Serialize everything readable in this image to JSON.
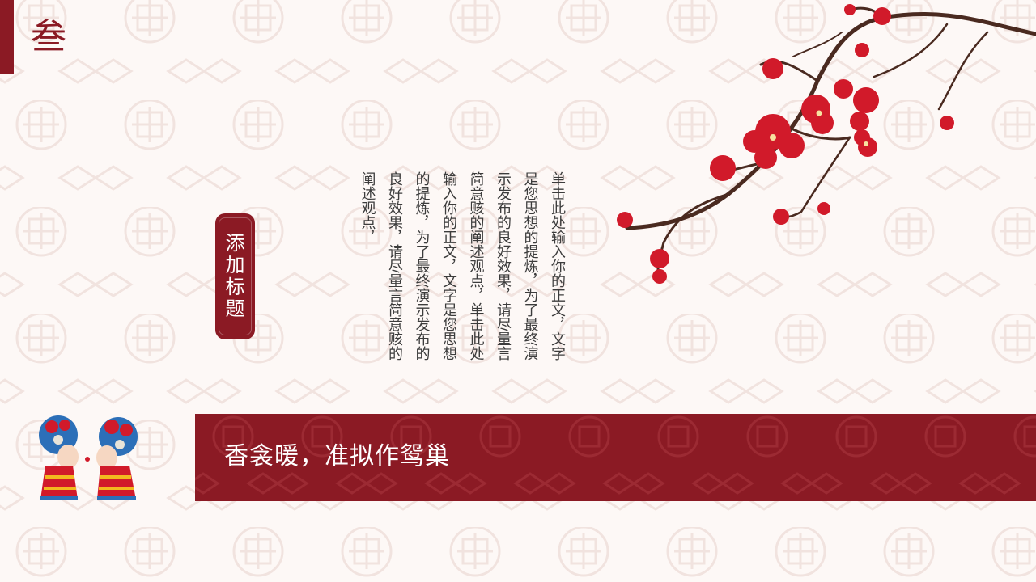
{
  "section": {
    "number": "叁"
  },
  "title_badge": {
    "text": "添加标题"
  },
  "body": {
    "text": "单击此处输入你的正文，文字是您思想的提炼，为了最终演示发布的良好效果，请尽量言简意赅的阐述观点，单击此处输入你的正文，文字是您思想的提炼，为了最终演示发布的良好效果，请尽量言简意赅的阐述观点，"
  },
  "banner": {
    "text": "香衾暖，准拟作鸳巢"
  },
  "colors": {
    "accent": "#8b1a24",
    "background": "#fdf8f6",
    "blossom": "#d11a2a",
    "branch": "#4a2a20"
  },
  "decorations": [
    "plum-blossom-branch",
    "bride-groom-illustration",
    "lattice-pattern"
  ]
}
